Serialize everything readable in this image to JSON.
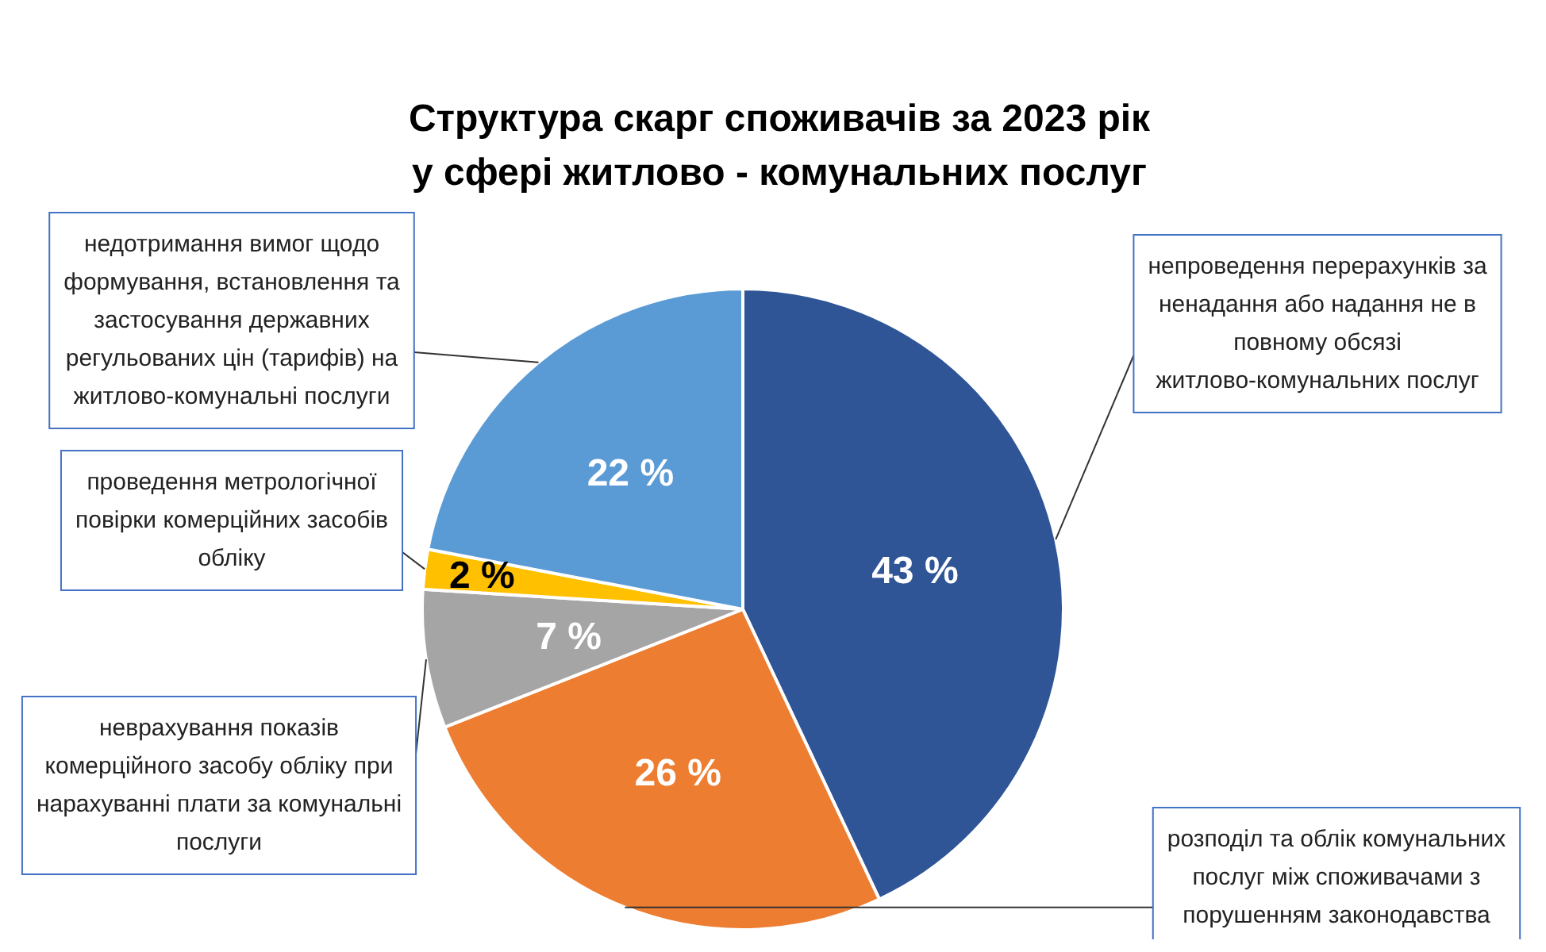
{
  "chart_data": {
    "type": "pie",
    "title": "Структура скарг споживачів за 2023 рік\nу сфері житлово - комунальних послуг",
    "categories": [
      "непроведення перерахунків за ненадання або надання не в повному обсязі житлово-комунальних послуг",
      "розподіл та облік комунальних послуг між споживачами з порушенням законодавства",
      "неврахування показів комерційного засобу обліку при нарахуванні плати за комунальні послуги",
      "проведення метрологічної повірки комерційних засобів обліку",
      "недотримання вимог щодо формування, встановлення та застосування державних регульованих цін (тарифів) на житлово-комунальні послуги"
    ],
    "values": [
      43,
      26,
      7,
      2,
      22
    ],
    "value_labels": [
      "43 %",
      "26 %",
      "7 %",
      "2 %",
      "22 %"
    ],
    "colors": [
      "#2f5597",
      "#ed7d31",
      "#a5a5a5",
      "#ffc000",
      "#5b9bd5"
    ],
    "legend": false
  }
}
